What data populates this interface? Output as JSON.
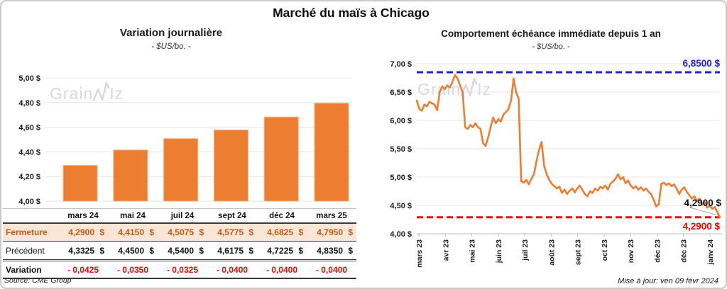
{
  "page": {
    "title": "Marché du maïs à Chicago",
    "updated": "Mise à jour: ven 09 févr 2024",
    "source": "Source: CME Group"
  },
  "brand": {
    "part1": "Grain",
    "part2": "Iz",
    "spike_icon": "line-spike-icon"
  },
  "colors": {
    "accent_orange": "#ED7D31",
    "bar_stroke": "#F4B183",
    "ref_blue": "#2222CC",
    "ref_red": "#FF0000",
    "grid": "#E4E4E4",
    "axis": "#BFBFBF",
    "leader": "#A6A6A6",
    "fermeture_bg": "#FBE5D6",
    "fermeture_text": "#C55A11",
    "watermark": "#D9D9D9"
  },
  "chart_data": [
    {
      "type": "bar",
      "title": "Variation journalière",
      "subtitle": "- $US/bo. -",
      "categories": [
        "mars 24",
        "mai 24",
        "juil 24",
        "sept 24",
        "déc 24",
        "mars 25"
      ],
      "values": [
        4.29,
        4.415,
        4.5075,
        4.5775,
        4.6825,
        4.795
      ],
      "ylim": [
        4.0,
        5.0
      ],
      "yticks": [
        {
          "label": "5,00 $",
          "value": 5.0
        },
        {
          "label": "4,80 $",
          "value": 4.8
        },
        {
          "label": "4,60 $",
          "value": 4.6
        },
        {
          "label": "4,40 $",
          "value": 4.4
        },
        {
          "label": "4,20 $",
          "value": 4.2
        },
        {
          "label": "4,00 $",
          "value": 4.0
        }
      ],
      "grid": true,
      "legend": false
    },
    {
      "type": "line",
      "title": "Comportement échéance immédiate depuis 1 an",
      "subtitle": "- $US/bo. -",
      "categories": [
        "mars 23",
        "avr 23",
        "mai 23",
        "juin 23",
        "juil 23",
        "août 23",
        "sept 23",
        "oct 23",
        "nov 23",
        "déc 23",
        "déc 23",
        "janv 24"
      ],
      "series": [
        {
          "name": "échéance immédiate",
          "values": [
            6.35,
            6.2,
            6.17,
            6.28,
            6.25,
            6.33,
            6.3,
            6.28,
            6.18,
            6.5,
            6.6,
            6.55,
            6.62,
            6.58,
            6.68,
            6.8,
            6.74,
            6.62,
            6.5,
            5.88,
            5.85,
            5.92,
            5.88,
            5.95,
            5.88,
            5.85,
            5.6,
            5.55,
            5.7,
            5.88,
            6.05,
            5.95,
            6.02,
            5.98,
            6.1,
            6.15,
            6.2,
            6.35,
            6.74,
            6.5,
            6.38,
            4.93,
            4.9,
            4.95,
            4.87,
            4.97,
            5.05,
            5.28,
            5.48,
            5.62,
            5.2,
            5.05,
            4.95,
            4.88,
            4.84,
            4.8,
            4.83,
            4.72,
            4.78,
            4.7,
            4.76,
            4.8,
            4.73,
            4.8,
            4.85,
            4.78,
            4.7,
            4.66,
            4.75,
            4.72,
            4.8,
            4.76,
            4.83,
            4.8,
            4.85,
            4.78,
            4.88,
            4.92,
            4.97,
            5.05,
            4.96,
            5.0,
            4.89,
            4.94,
            4.85,
            4.8,
            4.84,
            4.78,
            4.82,
            4.76,
            4.8,
            4.74,
            4.7,
            4.6,
            4.48,
            4.52,
            4.88,
            4.9,
            4.86,
            4.89,
            4.84,
            4.87,
            4.8,
            4.7,
            4.78,
            4.82,
            4.74,
            4.68,
            4.62,
            4.66,
            4.58,
            4.62,
            4.52,
            4.56,
            4.46,
            4.5,
            4.44,
            4.47,
            4.38,
            4.29
          ]
        }
      ],
      "ylim": [
        4.0,
        7.0
      ],
      "yticks": [
        {
          "label": "7,00 $",
          "value": 7.0
        },
        {
          "label": "6,50 $",
          "value": 6.5
        },
        {
          "label": "6,00 $",
          "value": 6.0
        },
        {
          "label": "5,50 $",
          "value": 5.5
        },
        {
          "label": "5,00 $",
          "value": 5.0
        },
        {
          "label": "4,50 $",
          "value": 4.5
        },
        {
          "label": "4,00 $",
          "value": 4.0
        }
      ],
      "ref_lines": [
        {
          "value": 6.85,
          "label": "6,8500 $",
          "color_key": "ref_blue",
          "label_side": "above"
        },
        {
          "value": 4.29,
          "label": "4,2900 $",
          "color_key": "ref_red",
          "label_side": "below"
        }
      ],
      "end_label": "4,2900 $",
      "grid": true,
      "legend": false
    }
  ],
  "table": {
    "columns": [
      "mars 24",
      "mai 24",
      "juil 24",
      "sept 24",
      "déc 24",
      "mars 25"
    ],
    "rows": [
      {
        "label": "Fermeture",
        "style": "fermeture",
        "suffix": "$",
        "values": [
          "4,2900",
          "4,4150",
          "4,5075",
          "4,5775",
          "4,6825",
          "4,7950"
        ]
      },
      {
        "label": "Précédent",
        "style": "precedent",
        "suffix": "$",
        "values": [
          "4,3325",
          "4,4500",
          "4,5400",
          "4,6175",
          "4,7225",
          "4,8350"
        ]
      },
      {
        "label": "Variation",
        "style": "variation",
        "suffix": "",
        "values": [
          "- 0,0425",
          "- 0,0350",
          "- 0,0325",
          "- 0,0400",
          "- 0,0400",
          "- 0,0400"
        ]
      }
    ]
  }
}
